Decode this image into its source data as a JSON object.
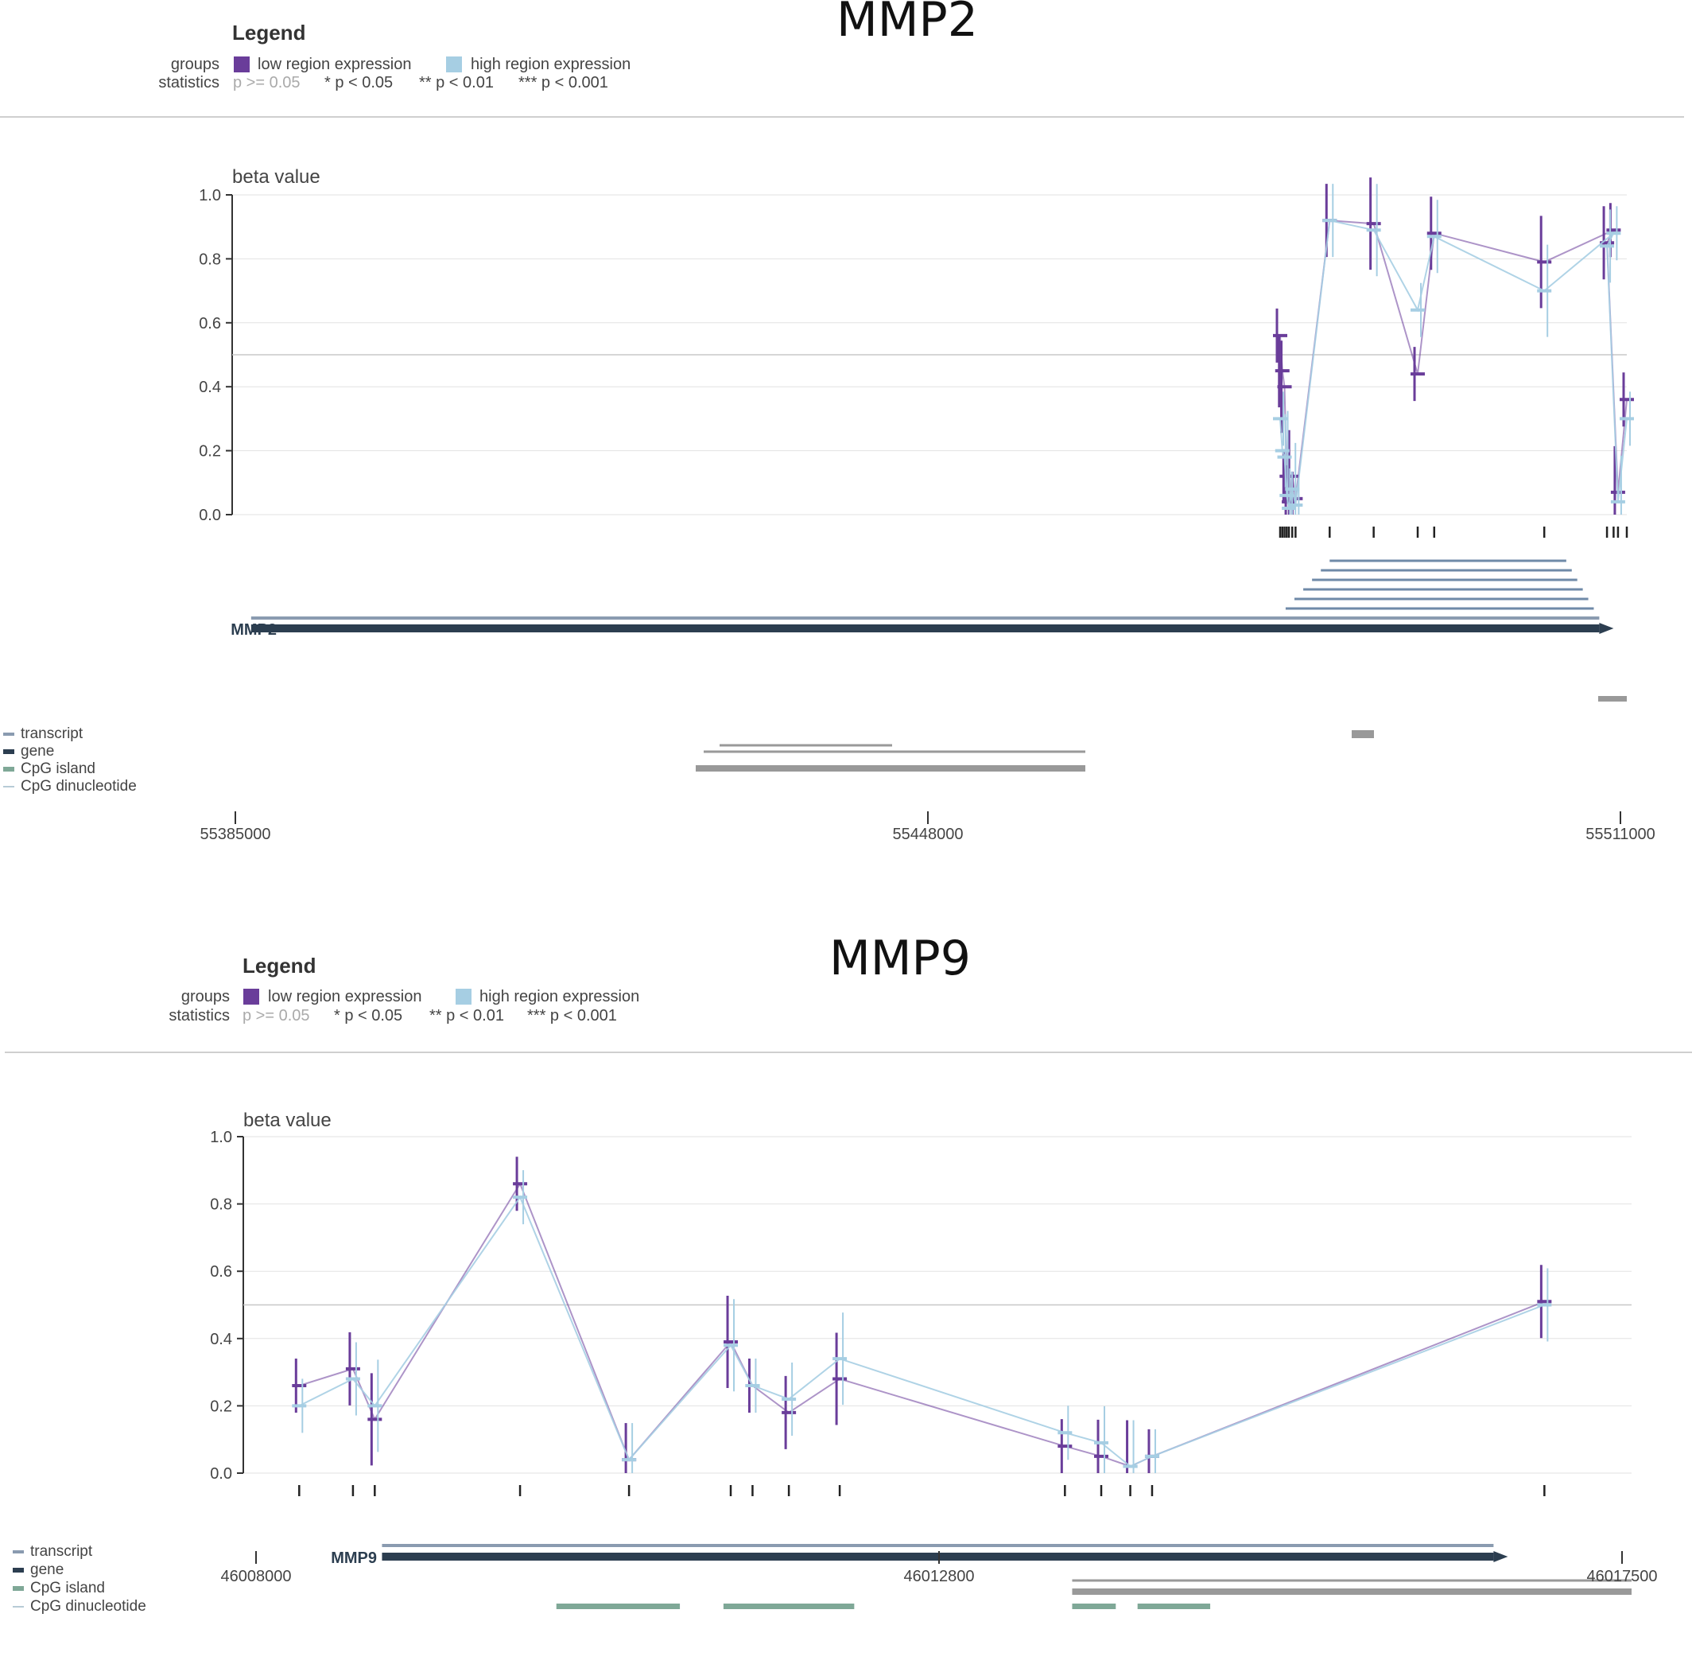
{
  "colors": {
    "low": "#6a3d9a",
    "high": "#a6cee3",
    "gene": "#2c3e50",
    "transcript": "#8a9bb0",
    "cpg_island": "#7fa897",
    "cpg_dinucleotide": "#b7cbd6",
    "other_gene": "#999999"
  },
  "legend": {
    "heading": "Legend",
    "groups_label": "groups",
    "statistics_label": "statistics",
    "groups": [
      "low region expression",
      "high region expression"
    ],
    "statistics": [
      "p >= 0.05",
      "* p < 0.05",
      "** p < 0.01",
      "*** p < 0.001"
    ]
  },
  "track_legend": [
    "transcript",
    "gene",
    "CpG island",
    "CpG dinucleotide"
  ],
  "chart_data": [
    {
      "type": "line",
      "title": "MMP2",
      "ylabel": "beta value",
      "ylim": [
        0,
        1
      ],
      "yticks": [
        "0.0",
        "0.2",
        "0.4",
        "0.6",
        "0.8",
        "1.0"
      ],
      "threshold": 0.5,
      "xlim": [
        55385000,
        55511000
      ],
      "xticks": [
        "55385000",
        "55448000",
        "55511000"
      ],
      "gene_label": "MMP2",
      "series": [
        {
          "name": "low region expression",
          "x": [
            55479500,
            55479700,
            55479900,
            55480100,
            55480300,
            55480600,
            55480900,
            55484000,
            55488000,
            55492000,
            55493500,
            55503500,
            55509800,
            55509200,
            55510200,
            55511000
          ],
          "y": [
            0.56,
            0.45,
            0.4,
            0.12,
            0.04,
            0.12,
            0.05,
            0.92,
            0.91,
            0.44,
            0.88,
            0.79,
            0.89,
            0.85,
            0.07,
            0.36
          ]
        },
        {
          "name": "high region expression",
          "x": [
            55479500,
            55479700,
            55479900,
            55480100,
            55480300,
            55480600,
            55480900,
            55484000,
            55488000,
            55492000,
            55493500,
            55503500,
            55509800,
            55509200,
            55510200,
            55511000
          ],
          "y": [
            0.3,
            0.2,
            0.18,
            0.06,
            0.02,
            0.08,
            0.03,
            0.92,
            0.89,
            0.64,
            0.87,
            0.7,
            0.88,
            0.84,
            0.04,
            0.3
          ]
        }
      ]
    },
    {
      "type": "line",
      "title": "MMP9",
      "ylabel": "beta value",
      "ylim": [
        0,
        1
      ],
      "yticks": [
        "0.0",
        "0.2",
        "0.4",
        "0.6",
        "0.8",
        "1.0"
      ],
      "threshold": 0.5,
      "xlim": [
        46008000,
        46017500
      ],
      "xticks": [
        "46008000",
        "46012800",
        "46017500"
      ],
      "gene_label": "MMP9",
      "series": [
        {
          "name": "low region expression",
          "x": [
            46008330,
            46008700,
            46008850,
            46009850,
            46010600,
            46011300,
            46011450,
            46011700,
            46012050,
            46013600,
            46013850,
            46014050,
            46014200,
            46016900
          ],
          "y": [
            0.26,
            0.31,
            0.16,
            0.86,
            0.04,
            0.39,
            0.26,
            0.18,
            0.28,
            0.08,
            0.05,
            0.02,
            0.05,
            0.51
          ]
        },
        {
          "name": "high region expression",
          "x": [
            46008330,
            46008700,
            46008850,
            46009850,
            46010600,
            46011300,
            46011450,
            46011700,
            46012050,
            46013600,
            46013850,
            46014050,
            46014200,
            46016900
          ],
          "y": [
            0.2,
            0.28,
            0.2,
            0.82,
            0.04,
            0.38,
            0.26,
            0.22,
            0.34,
            0.12,
            0.09,
            0.02,
            0.05,
            0.5
          ]
        }
      ]
    }
  ]
}
